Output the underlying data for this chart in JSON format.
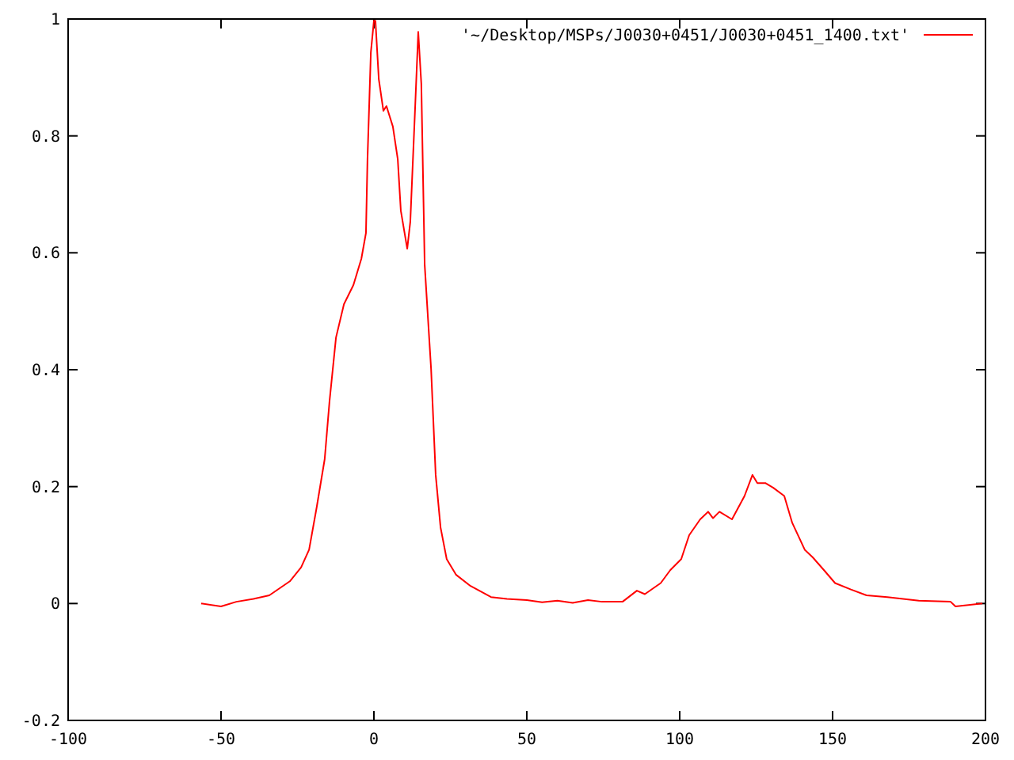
{
  "chart_data": {
    "type": "line",
    "legend": "top right",
    "xlim": [
      -100,
      200
    ],
    "ylim": [
      -0.2,
      1
    ],
    "xticks": [
      -100,
      -50,
      0,
      50,
      100,
      150,
      200
    ],
    "yticks": [
      -0.2,
      0,
      0.2,
      0.4,
      0.6,
      0.8,
      1
    ],
    "series": [
      {
        "name": "'~/Desktop/MSPs/J0030+0451/J0030+0451_1400.txt'",
        "color": "#ff0000",
        "x": [
          -56.5,
          -50,
          -45,
          -39.4,
          -34.2,
          -27.5,
          -23.8,
          -21.2,
          -18.7,
          -16.1,
          -14.5,
          -12.4,
          -9.8,
          -6.7,
          -4.1,
          -2.6,
          -2.1,
          -1,
          0,
          0.5,
          1.6,
          3.1,
          4.1,
          6.2,
          7.8,
          8.8,
          10.9,
          11.9,
          13.5,
          14.5,
          15.5,
          16.6,
          18.7,
          20.2,
          21.8,
          23.8,
          26.9,
          31.6,
          38.3,
          43.5,
          50,
          55,
          60,
          65,
          70,
          74.6,
          81.3,
          86,
          88.6,
          93.8,
          96.9,
          100.5,
          103.1,
          106.7,
          109.3,
          110.9,
          113,
          117.1,
          121.2,
          123.8,
          125.4,
          128,
          130.6,
          134.2,
          136.8,
          140.9,
          143.5,
          147.2,
          150.8,
          156,
          161.1,
          167.9,
          178.2,
          188.6,
          190.2,
          199
        ],
        "values": [
          0,
          -0.005,
          0.003,
          0.008,
          0.014,
          0.038,
          0.062,
          0.092,
          0.165,
          0.247,
          0.347,
          0.455,
          0.512,
          0.545,
          0.59,
          0.634,
          0.76,
          0.943,
          0.997,
          0.997,
          0.897,
          0.843,
          0.851,
          0.816,
          0.76,
          0.672,
          0.607,
          0.653,
          0.851,
          0.978,
          0.889,
          0.58,
          0.401,
          0.22,
          0.13,
          0.076,
          0.049,
          0.03,
          0.011,
          0.008,
          0.006,
          0.002,
          0.005,
          0.001,
          0.006,
          0.003,
          0.003,
          0.022,
          0.016,
          0.035,
          0.057,
          0.076,
          0.117,
          0.144,
          0.157,
          0.146,
          0.157,
          0.144,
          0.184,
          0.22,
          0.206,
          0.206,
          0.198,
          0.184,
          0.138,
          0.092,
          0.079,
          0.057,
          0.035,
          0.024,
          0.014,
          0.011,
          0.005,
          0.003,
          -0.005,
          0
        ]
      }
    ]
  }
}
